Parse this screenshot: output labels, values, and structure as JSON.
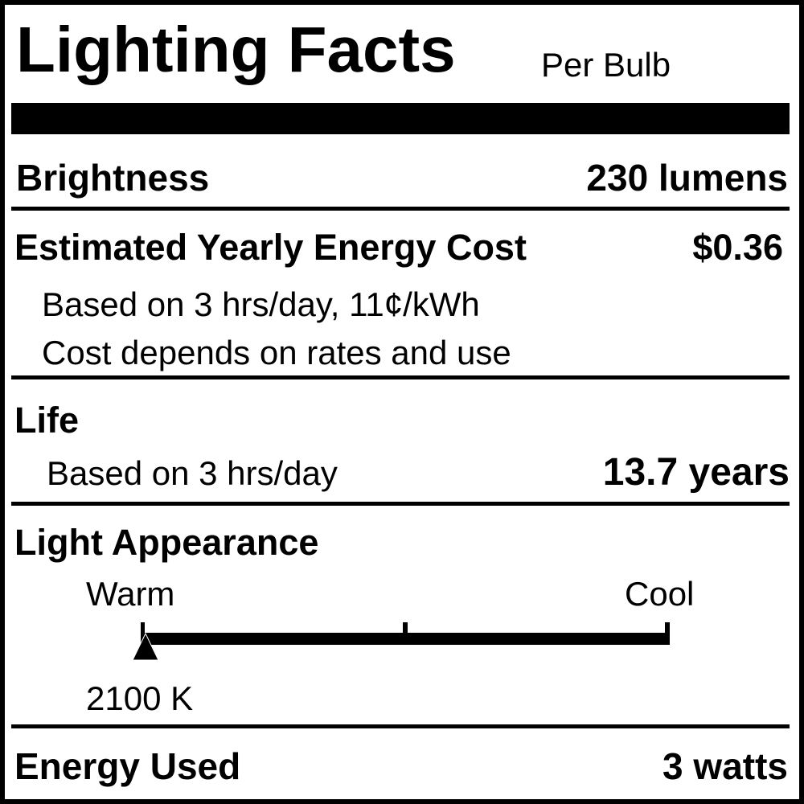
{
  "header": {
    "title": "Lighting Facts",
    "subtitle": "Per Bulb"
  },
  "brightness": {
    "label": "Brightness",
    "value": "230 lumens"
  },
  "energy_cost": {
    "label": "Estimated Yearly Energy Cost",
    "value": "$0.36",
    "note1": "Based on 3 hrs/day, 11¢/kWh",
    "note2": "Cost depends on rates and use"
  },
  "life": {
    "label": "Life",
    "note": "Based on 3 hrs/day",
    "value": "13.7 years"
  },
  "light_appearance": {
    "label": "Light Appearance",
    "warm_label": "Warm",
    "cool_label": "Cool",
    "value": "2100 K",
    "marker_position_fraction": 0.0
  },
  "energy_used": {
    "label": "Energy Used",
    "value": "3 watts"
  }
}
